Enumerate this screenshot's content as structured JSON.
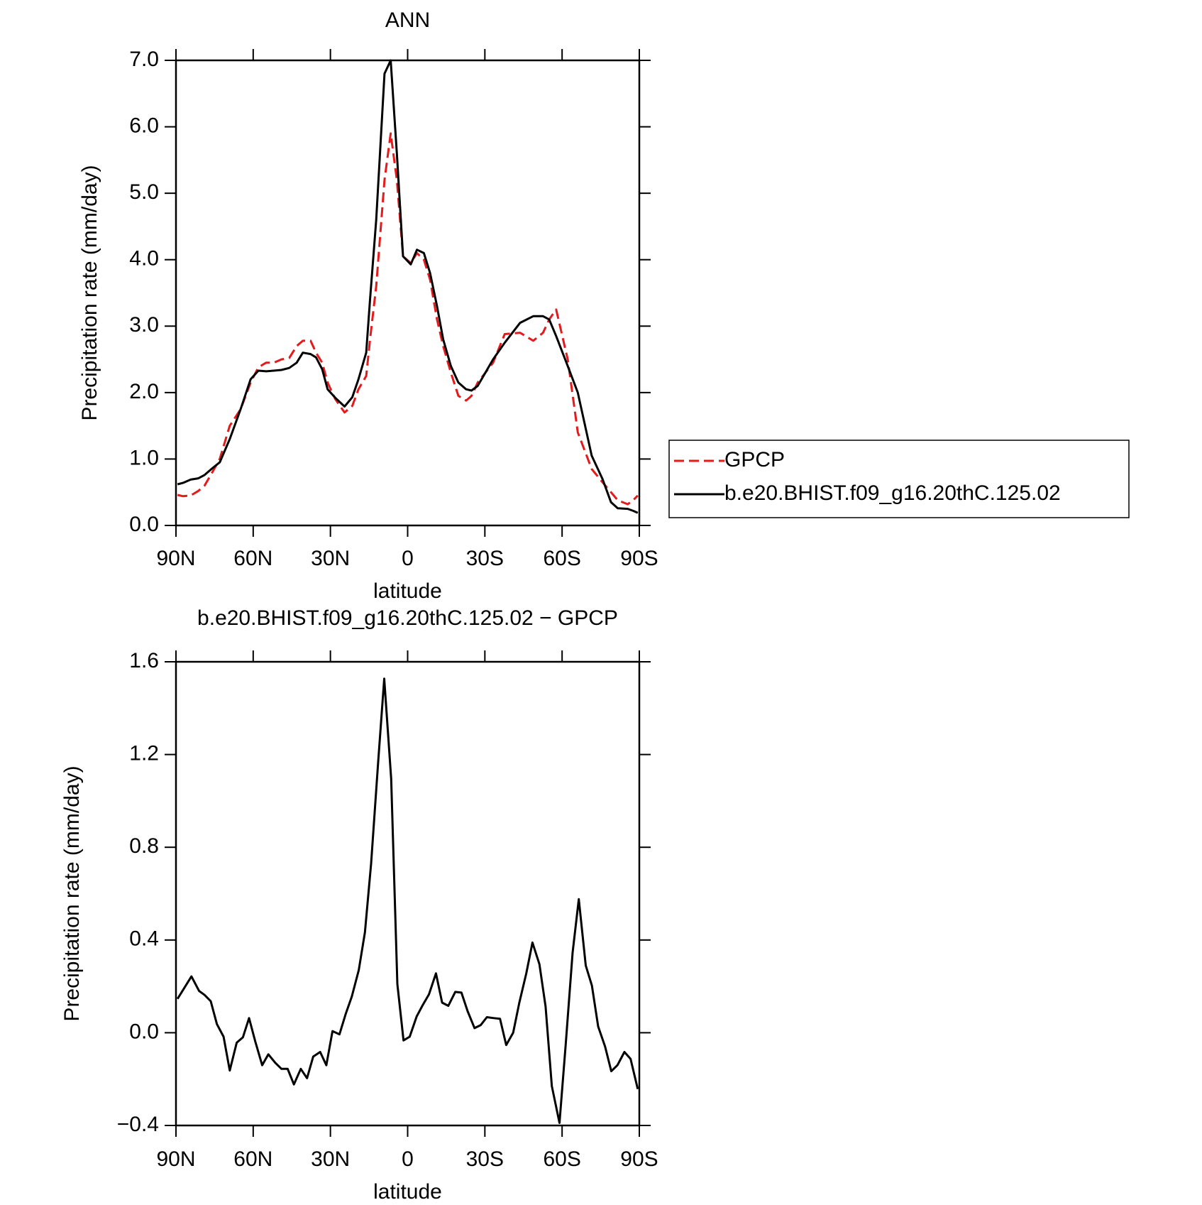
{
  "chart_data": [
    {
      "type": "line",
      "title": "ANN",
      "xlabel": "latitude",
      "ylabel": "Precipitation rate (mm/day)",
      "xlim": [
        90,
        -90
      ],
      "xticks": [
        {
          "value": 90,
          "label": "90N"
        },
        {
          "value": 60,
          "label": "60N"
        },
        {
          "value": 30,
          "label": "30N"
        },
        0,
        {
          "value": -30,
          "label": "30S"
        },
        {
          "value": -60,
          "label": "60S"
        },
        {
          "value": -90,
          "label": "90S"
        }
      ],
      "ylim": [
        0,
        7
      ],
      "yticks": [
        {
          "value": 0,
          "label": "0.0"
        },
        {
          "value": 1,
          "label": "1.0"
        },
        {
          "value": 2,
          "label": "2.0"
        },
        {
          "value": 3,
          "label": "3.0"
        },
        {
          "value": 4,
          "label": "4.0"
        },
        {
          "value": 5,
          "label": "5.0"
        },
        {
          "value": 6,
          "label": "6.0"
        },
        {
          "value": 7,
          "label": "7.0"
        }
      ],
      "legend": "right",
      "x": [
        89.4,
        87.3,
        84.3,
        81.3,
        78.9,
        75.9,
        73.0,
        69.1,
        64.9,
        61.0,
        58.0,
        55.0,
        52.0,
        49.0,
        46.0,
        43.1,
        40.7,
        37.7,
        35.6,
        33.2,
        31.1,
        28.1,
        24.5,
        21.5,
        19.1,
        16.1,
        14.6,
        12.2,
        9.0,
        6.6,
        4.2,
        1.8,
        -1.2,
        -3.6,
        -6.3,
        -8.7,
        -11.4,
        -13.8,
        -16.8,
        -19.7,
        -22.7,
        -24.8,
        -27.2,
        -30.2,
        -33.2,
        -37.7,
        -43.7,
        -48.8,
        -52.6,
        -55.0,
        -57.7,
        -62.2,
        -66.1,
        -71.5,
        -75.7,
        -79.0,
        -81.6,
        -85.5,
        -87.6,
        -89.4
      ],
      "series": [
        {
          "name": "GPCP",
          "color": "#e41a1c",
          "linestyle": "dashed",
          "values": [
            0.46,
            0.44,
            0.45,
            0.52,
            0.6,
            0.8,
            1.0,
            1.5,
            1.75,
            2.15,
            2.38,
            2.45,
            2.45,
            2.5,
            2.52,
            2.7,
            2.78,
            2.78,
            2.6,
            2.45,
            2.15,
            1.9,
            1.7,
            1.8,
            2.05,
            2.25,
            2.8,
            3.6,
            5.2,
            5.9,
            5.2,
            4.05,
            3.95,
            4.1,
            4.0,
            3.7,
            3.1,
            2.7,
            2.3,
            1.95,
            1.88,
            1.95,
            2.15,
            2.3,
            2.45,
            2.88,
            2.9,
            2.78,
            2.9,
            3.1,
            3.25,
            2.5,
            1.4,
            0.85,
            0.65,
            0.5,
            0.38,
            0.32,
            0.38,
            0.45
          ]
        },
        {
          "name": "b.e20.BHIST.f09_g16.20thC.125.02",
          "color": "#000000",
          "linestyle": "solid",
          "values": [
            0.62,
            0.64,
            0.69,
            0.71,
            0.76,
            0.86,
            0.95,
            1.3,
            1.75,
            2.2,
            2.33,
            2.32,
            2.33,
            2.34,
            2.37,
            2.45,
            2.6,
            2.58,
            2.53,
            2.35,
            2.05,
            1.92,
            1.79,
            1.93,
            2.2,
            2.6,
            3.4,
            4.6,
            6.8,
            7.0,
            5.6,
            4.05,
            3.93,
            4.15,
            4.1,
            3.8,
            3.3,
            2.8,
            2.4,
            2.15,
            2.05,
            2.03,
            2.1,
            2.3,
            2.5,
            2.75,
            3.05,
            3.15,
            3.15,
            3.1,
            2.85,
            2.4,
            2.0,
            1.05,
            0.7,
            0.35,
            0.26,
            0.25,
            0.22,
            0.19
          ]
        }
      ]
    },
    {
      "type": "line",
      "title": "b.e20.BHIST.f09_g16.20thC.125.02 − GPCP",
      "xlabel": "latitude",
      "ylabel": "Precipitation rate (mm/day)",
      "xlim": [
        90,
        -90
      ],
      "xticks": [
        {
          "value": 90,
          "label": "90N"
        },
        {
          "value": 60,
          "label": "60N"
        },
        {
          "value": 30,
          "label": "30N"
        },
        0,
        {
          "value": -30,
          "label": "30S"
        },
        {
          "value": -60,
          "label": "60S"
        },
        {
          "value": -90,
          "label": "90S"
        }
      ],
      "ylim": [
        -0.4,
        1.6
      ],
      "yticks": [
        {
          "value": -0.4,
          "label": "−0.4"
        },
        {
          "value": 0,
          "label": "0.0"
        },
        0.4,
        0.8,
        1.2,
        1.6
      ],
      "x": [
        89.4,
        84.0,
        81.0,
        78.9,
        76.5,
        74.1,
        71.5,
        69.1,
        66.4,
        64.0,
        61.6,
        59.2,
        56.5,
        54.1,
        51.4,
        49.0,
        46.6,
        44.2,
        41.5,
        39.1,
        36.7,
        34.0,
        31.6,
        29.2,
        26.5,
        24.1,
        21.7,
        19.0,
        16.6,
        14.2,
        11.5,
        9.1,
        6.4,
        4.0,
        1.6,
        -0.8,
        -3.5,
        -5.9,
        -8.3,
        -11.0,
        -13.4,
        -15.8,
        -18.5,
        -20.9,
        -23.3,
        -26.0,
        -28.4,
        -30.8,
        -33.5,
        -35.9,
        -38.3,
        -41.0,
        -43.4,
        -46.1,
        -48.5,
        -51.2,
        -53.6,
        -56.0,
        -59.0,
        -61.4,
        -64.1,
        -66.5,
        -69.2,
        -71.6,
        -74.0,
        -76.7,
        -79.1,
        -81.5,
        -84.2,
        -86.6,
        -89.4
      ],
      "color": "#000000",
      "values": [
        0.146,
        0.243,
        0.18,
        0.163,
        0.136,
        0.037,
        -0.017,
        -0.163,
        -0.043,
        -0.02,
        0.063,
        -0.037,
        -0.14,
        -0.093,
        -0.13,
        -0.156,
        -0.156,
        -0.223,
        -0.156,
        -0.196,
        -0.103,
        -0.083,
        -0.14,
        0.007,
        -0.007,
        0.08,
        0.156,
        0.27,
        0.433,
        0.729,
        1.161,
        1.527,
        1.095,
        0.21,
        -0.033,
        -0.017,
        0.07,
        0.12,
        0.166,
        0.256,
        0.13,
        0.116,
        0.176,
        0.173,
        0.093,
        0.02,
        0.033,
        0.067,
        0.063,
        0.06,
        -0.053,
        0,
        0.13,
        0.256,
        0.389,
        0.296,
        0.113,
        -0.23,
        -0.389,
        -0.053,
        0.346,
        0.576,
        0.29,
        0.203,
        0.027,
        -0.06,
        -0.166,
        -0.14,
        -0.083,
        -0.113,
        -0.243
      ]
    }
  ]
}
